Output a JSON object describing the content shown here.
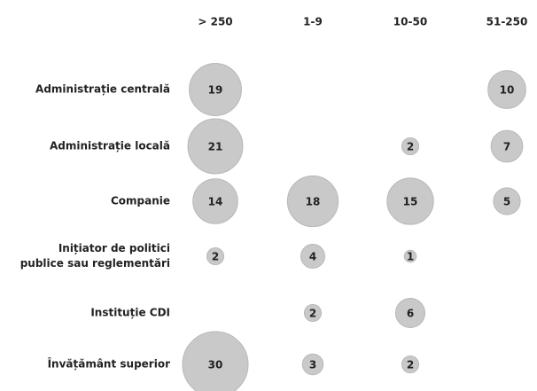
{
  "chart_data": {
    "type": "bubble",
    "columns": [
      "> 250",
      "1-9",
      "10-50",
      "51-250"
    ],
    "rows": [
      "Administrație centrală",
      "Administrație locală",
      "Companie",
      "Inițiator de politici\npublice sau reglementări",
      "Instituție CDI",
      "Învățământ superior"
    ],
    "values": [
      [
        19,
        null,
        null,
        10
      ],
      [
        21,
        null,
        2,
        7
      ],
      [
        14,
        18,
        15,
        5
      ],
      [
        2,
        4,
        1,
        null
      ],
      [
        null,
        2,
        6,
        null
      ],
      [
        30,
        3,
        2,
        null
      ]
    ],
    "color": "#c9c9c9"
  }
}
